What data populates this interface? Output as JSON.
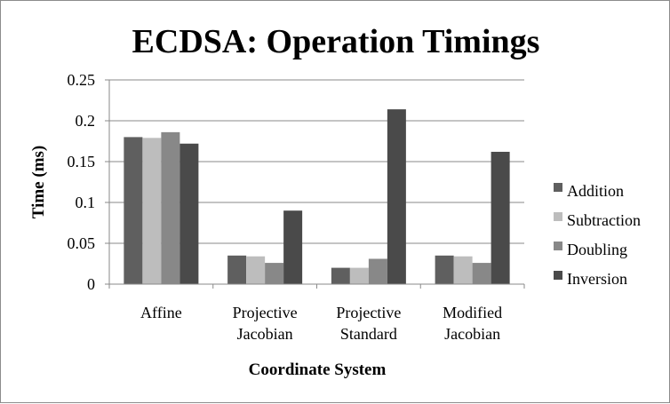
{
  "chart_data": {
    "type": "bar",
    "title": "ECDSA: Operation Timings",
    "xlabel": "Coordinate System",
    "ylabel": "Time (ms)",
    "ylim": [
      0,
      0.25
    ],
    "yticks": [
      0,
      0.05,
      0.1,
      0.15,
      0.2,
      0.25
    ],
    "ytick_labels": [
      "0",
      "0.05",
      "0.1",
      "0.15",
      "0.2",
      "0.25"
    ],
    "grid": true,
    "legend_position": "right",
    "categories": [
      [
        "Affine"
      ],
      [
        "Projective",
        "Jacobian"
      ],
      [
        "Projective",
        "Standard"
      ],
      [
        "Modified",
        "Jacobian"
      ]
    ],
    "series": [
      {
        "name": "Addition",
        "color": "#5f5f5f",
        "values": [
          0.18,
          0.035,
          0.02,
          0.035
        ]
      },
      {
        "name": "Subtraction",
        "color": "#bdbdbd",
        "values": [
          0.179,
          0.034,
          0.02,
          0.034
        ]
      },
      {
        "name": "Doubling",
        "color": "#888888",
        "values": [
          0.186,
          0.026,
          0.031,
          0.026
        ]
      },
      {
        "name": "Inversion",
        "color": "#4a4a4a",
        "values": [
          0.172,
          0.09,
          0.214,
          0.162
        ]
      }
    ]
  }
}
